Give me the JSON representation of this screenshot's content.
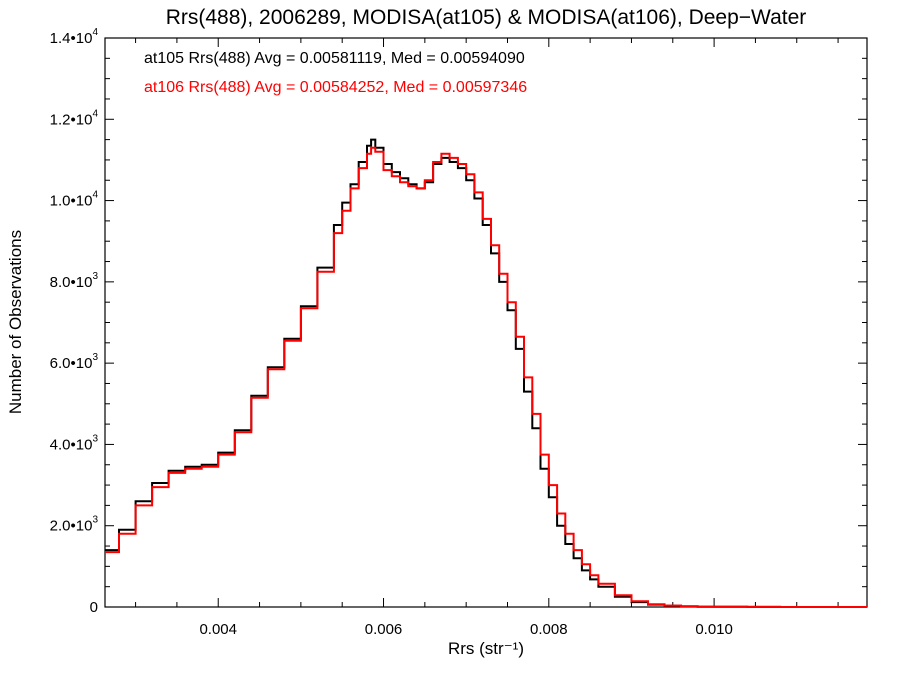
{
  "chart_data": {
    "type": "line",
    "title": "Rrs(488), 2006289, MODISA(at105) & MODISA(at106), Deep−Water",
    "xlabel": "Rrs (str⁻¹)",
    "ylabel": "Number of Observations",
    "xlim": [
      0.00263,
      0.01185
    ],
    "ylim": [
      0,
      14000
    ],
    "grid": false,
    "legend": "top-left",
    "x_tick_labels": [
      "0.004",
      "0.006",
      "0.008",
      "0.010"
    ],
    "y_tick_labels": [
      {
        "base": "0",
        "exp": ""
      },
      {
        "base": "2.0•10",
        "exp": "3"
      },
      {
        "base": "4.0•10",
        "exp": "3"
      },
      {
        "base": "6.0•10",
        "exp": "3"
      },
      {
        "base": "8.0•10",
        "exp": "3"
      },
      {
        "base": "1.0•10",
        "exp": "4"
      },
      {
        "base": "1.2•10",
        "exp": "4"
      },
      {
        "base": "1.4•10",
        "exp": "4"
      }
    ],
    "annotations": [
      {
        "text": "at105 Rrs(488) Avg = 0.00581119, Med = 0.00594090",
        "color": "#000000"
      },
      {
        "text": "at106 Rrs(488) Avg = 0.00584252, Med = 0.00597346",
        "color": "#ff0000"
      }
    ],
    "series": [
      {
        "color": "#000000",
        "x": [
          0.00263,
          0.0028,
          0.003,
          0.0032,
          0.0034,
          0.0036,
          0.0038,
          0.004,
          0.0042,
          0.0044,
          0.0046,
          0.0048,
          0.005,
          0.0052,
          0.0054,
          0.0055,
          0.0056,
          0.0057,
          0.0058,
          0.00585,
          0.0059,
          0.006,
          0.0061,
          0.0062,
          0.0063,
          0.0064,
          0.0065,
          0.0066,
          0.0067,
          0.0068,
          0.0069,
          0.007,
          0.0071,
          0.0072,
          0.0073,
          0.0074,
          0.0075,
          0.0076,
          0.0077,
          0.0078,
          0.0079,
          0.008,
          0.0081,
          0.0082,
          0.0083,
          0.0084,
          0.0085,
          0.0086,
          0.0088,
          0.009,
          0.0092,
          0.0094,
          0.0096,
          0.0098,
          0.01,
          0.0104,
          0.0108,
          0.01185
        ],
        "y": [
          1400,
          1900,
          2600,
          3050,
          3350,
          3450,
          3500,
          3800,
          4350,
          5200,
          5900,
          6600,
          7400,
          8350,
          9400,
          9950,
          10400,
          10950,
          11350,
          11500,
          11300,
          10900,
          10700,
          10550,
          10400,
          10300,
          10450,
          10900,
          11050,
          10950,
          10800,
          10500,
          10050,
          9400,
          8700,
          8000,
          7300,
          6350,
          5300,
          4400,
          3400,
          2700,
          2000,
          1550,
          1200,
          900,
          680,
          500,
          250,
          120,
          60,
          30,
          15,
          8,
          4,
          2,
          1,
          0
        ]
      },
      {
        "color": "#ff0000",
        "x": [
          0.00263,
          0.0028,
          0.003,
          0.0032,
          0.0034,
          0.0036,
          0.0038,
          0.004,
          0.0042,
          0.0044,
          0.0046,
          0.0048,
          0.005,
          0.0052,
          0.0054,
          0.0055,
          0.0056,
          0.0057,
          0.0058,
          0.00585,
          0.0059,
          0.006,
          0.0061,
          0.0062,
          0.0063,
          0.0064,
          0.0065,
          0.0066,
          0.0067,
          0.0068,
          0.0069,
          0.007,
          0.0071,
          0.0072,
          0.0073,
          0.0074,
          0.0075,
          0.0076,
          0.0077,
          0.0078,
          0.0079,
          0.008,
          0.0081,
          0.0082,
          0.0083,
          0.0084,
          0.0085,
          0.0086,
          0.0088,
          0.009,
          0.0092,
          0.0094,
          0.0096,
          0.0098,
          0.01,
          0.0104,
          0.0108,
          0.01185
        ],
        "y": [
          1350,
          1800,
          2500,
          2950,
          3300,
          3400,
          3450,
          3750,
          4300,
          5150,
          5850,
          6550,
          7350,
          8250,
          9200,
          9750,
          10300,
          10800,
          11150,
          11300,
          11200,
          10750,
          10600,
          10450,
          10350,
          10300,
          10500,
          10950,
          11150,
          11050,
          10900,
          10650,
          10200,
          9550,
          8900,
          8200,
          7500,
          6650,
          5650,
          4750,
          3750,
          3000,
          2300,
          1800,
          1400,
          1050,
          780,
          570,
          290,
          140,
          70,
          35,
          18,
          9,
          5,
          2,
          1,
          0
        ]
      }
    ]
  }
}
